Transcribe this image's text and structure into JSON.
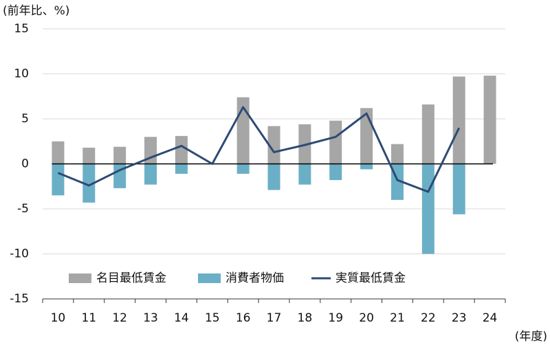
{
  "chart_data": {
    "type": "bar-line",
    "y_axis_label": "(前年比、%)",
    "x_axis_label": "(年度)",
    "categories": [
      "10",
      "11",
      "12",
      "13",
      "14",
      "15",
      "16",
      "17",
      "18",
      "19",
      "20",
      "21",
      "22",
      "23",
      "24"
    ],
    "series": [
      {
        "name": "名目最低賃金",
        "type": "bar",
        "color": "#a6a6a6",
        "values": [
          2.5,
          1.8,
          1.9,
          3.0,
          3.1,
          null,
          7.4,
          4.2,
          4.4,
          4.8,
          6.2,
          2.2,
          6.6,
          9.7,
          9.8
        ]
      },
      {
        "name": "消費者物価",
        "type": "bar",
        "color": "#6aafc6",
        "values": [
          -3.5,
          -4.3,
          -2.7,
          -2.3,
          -1.1,
          null,
          -1.1,
          -2.9,
          -2.3,
          -1.8,
          -0.6,
          -4.0,
          -10.0,
          -5.6,
          null
        ]
      },
      {
        "name": "実質最低賃金",
        "type": "line",
        "color": "#2e4a74",
        "values": [
          -1.0,
          -2.4,
          -0.7,
          0.7,
          2.0,
          0,
          6.3,
          1.3,
          2.1,
          3.0,
          5.6,
          -1.8,
          -3.1,
          4.0,
          null
        ]
      }
    ],
    "ylim": [
      -15,
      15
    ],
    "yticks": [
      -15,
      -10,
      -5,
      0,
      5,
      10,
      15
    ],
    "grid": true
  }
}
